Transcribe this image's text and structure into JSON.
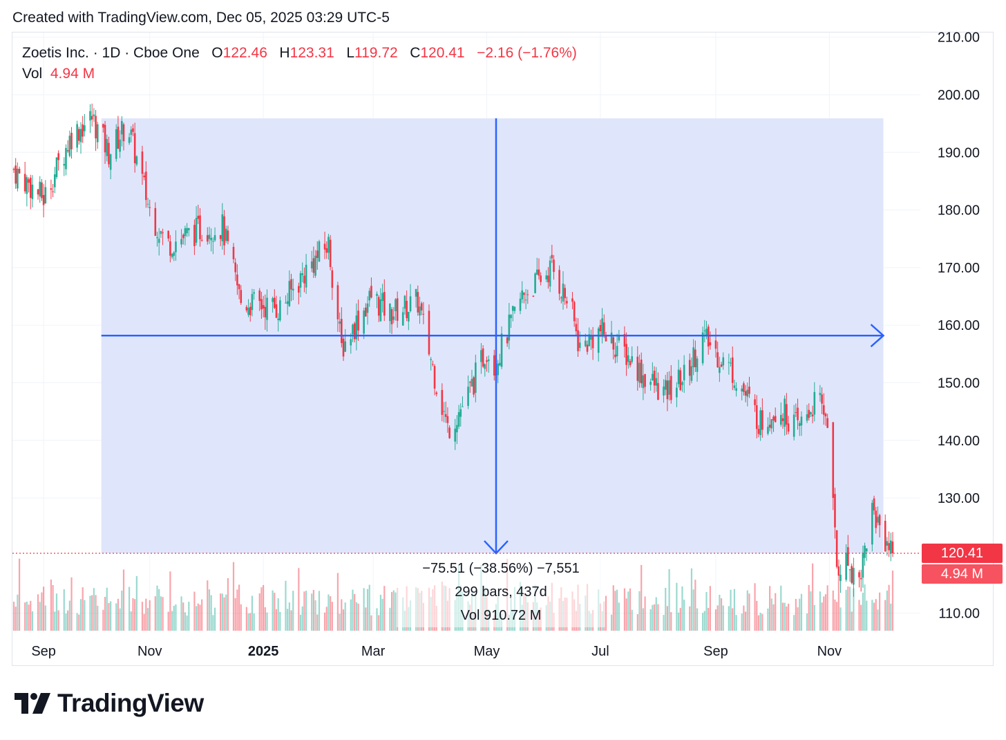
{
  "caption": "Created with TradingView.com, Dec 05, 2025 03:29 UTC-5",
  "legend": {
    "symbol": "Zoetis Inc. · 1D · Cboe One",
    "o_label": "O",
    "o_value": "122.46",
    "h_label": "H",
    "h_value": "123.31",
    "l_label": "L",
    "l_value": "119.72",
    "c_label": "C",
    "c_value": "120.41",
    "change": "−2.16 (−1.76%)",
    "vol_label": "Vol",
    "vol_value": "4.94 M"
  },
  "measure": {
    "line1": "−75.51 (−38.56%) −7,551",
    "line2": "299 bars, 437d",
    "line3": "Vol 910.72 M"
  },
  "price_tag": "120.41",
  "volume_tag": "4.94 M",
  "brand": "TradingView",
  "colors": {
    "up": "#22ab94",
    "down": "#f23645",
    "measure_fill": "#dfe6fb",
    "measure_line": "#2962ff"
  },
  "chart_data": {
    "type": "candlestick",
    "title": "Zoetis Inc. · 1D · Cboe One",
    "y_ticks": [
      "210.00",
      "200.00",
      "190.00",
      "180.00",
      "170.00",
      "160.00",
      "150.00",
      "140.00",
      "130.00",
      "110.00"
    ],
    "x_ticks": [
      "Sep",
      "Nov",
      "2025",
      "Mar",
      "May",
      "Jul",
      "Sep",
      "Nov"
    ],
    "ylim": [
      105,
      212
    ],
    "last_close": 120.41,
    "measure_range": {
      "from_price": 195.9,
      "to_price": 120.4,
      "from": "Oct 2024",
      "to": "Dec 2025"
    },
    "anchor_closes": [
      {
        "date": "Aug 20, 2024",
        "close": 187
      },
      {
        "date": "Sep 05, 2024",
        "close": 182
      },
      {
        "date": "Sep 20, 2024",
        "close": 193
      },
      {
        "date": "Oct 01, 2024",
        "close": 196
      },
      {
        "date": "Oct 10, 2024",
        "close": 190
      },
      {
        "date": "Oct 20, 2024",
        "close": 195
      },
      {
        "date": "Nov 01, 2024",
        "close": 180
      },
      {
        "date": "Nov 10, 2024",
        "close": 174
      },
      {
        "date": "Dec 01, 2024",
        "close": 177
      },
      {
        "date": "Dec 10, 2024",
        "close": 177
      },
      {
        "date": "Dec 20, 2024",
        "close": 164
      },
      {
        "date": "Jan 10, 2025",
        "close": 163
      },
      {
        "date": "Jan 25, 2025",
        "close": 170
      },
      {
        "date": "Feb 05, 2025",
        "close": 174
      },
      {
        "date": "Feb 12, 2025",
        "close": 156
      },
      {
        "date": "Feb 28, 2025",
        "close": 165
      },
      {
        "date": "Mar 10, 2025",
        "close": 162
      },
      {
        "date": "Mar 25, 2025",
        "close": 164
      },
      {
        "date": "Apr 04, 2025",
        "close": 150
      },
      {
        "date": "Apr 10, 2025",
        "close": 142
      },
      {
        "date": "Apr 20, 2025",
        "close": 147
      },
      {
        "date": "May 01, 2025",
        "close": 156
      },
      {
        "date": "May 05, 2025",
        "close": 153
      },
      {
        "date": "May 20, 2025",
        "close": 165
      },
      {
        "date": "Jun 05, 2025",
        "close": 170
      },
      {
        "date": "Jun 15, 2025",
        "close": 163
      },
      {
        "date": "Jun 20, 2025",
        "close": 156
      },
      {
        "date": "Jul 01, 2025",
        "close": 159
      },
      {
        "date": "Jul 15, 2025",
        "close": 155
      },
      {
        "date": "Jul 25, 2025",
        "close": 151
      },
      {
        "date": "Aug 05, 2025",
        "close": 148
      },
      {
        "date": "Aug 15, 2025",
        "close": 151
      },
      {
        "date": "Aug 25, 2025",
        "close": 158
      },
      {
        "date": "Sep 10, 2025",
        "close": 152
      },
      {
        "date": "Sep 25, 2025",
        "close": 143
      },
      {
        "date": "Oct 05, 2025",
        "close": 146
      },
      {
        "date": "Oct 15, 2025",
        "close": 142
      },
      {
        "date": "Oct 25, 2025",
        "close": 147
      },
      {
        "date": "Oct 31, 2025",
        "close": 144
      },
      {
        "date": "Nov 05, 2025",
        "close": 118
      },
      {
        "date": "Nov 10, 2025",
        "close": 119
      },
      {
        "date": "Nov 17, 2025",
        "close": 116
      },
      {
        "date": "Nov 24, 2025",
        "close": 128
      },
      {
        "date": "Dec 05, 2025",
        "close": 120.41
      }
    ]
  }
}
